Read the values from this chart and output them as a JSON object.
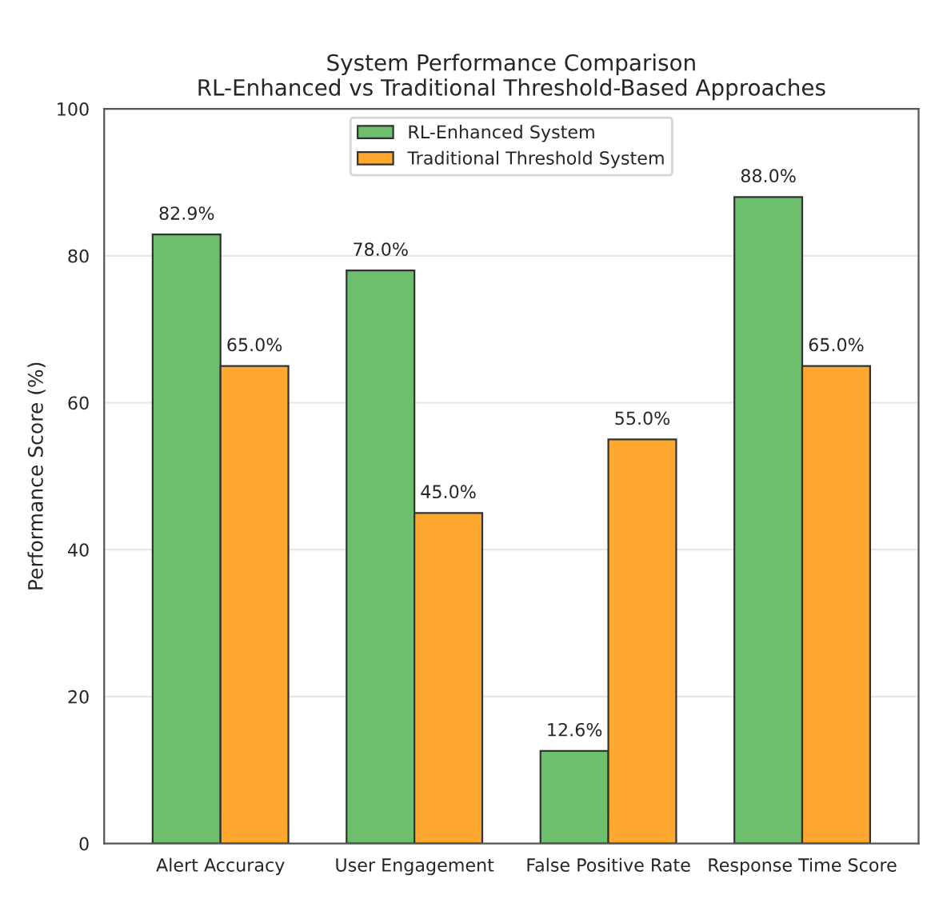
{
  "chart_data": {
    "type": "bar",
    "title": "System Performance Comparison\nRL-Enhanced vs Traditional Threshold-Based Approaches",
    "ylabel": "Performance Score (%)",
    "categories": [
      "Alert Accuracy",
      "User Engagement",
      "False Positive Rate",
      "Response Time Score"
    ],
    "series": [
      {
        "name": "RL-Enhanced System",
        "color": "#6dbe6d",
        "values": [
          82.9,
          78.0,
          12.6,
          88.0
        ],
        "value_labels": [
          "82.9%",
          "78.0%",
          "12.6%",
          "88.0%"
        ]
      },
      {
        "name": "Traditional Threshold System",
        "color": "#fea82f",
        "values": [
          65.0,
          45.0,
          55.0,
          65.0
        ],
        "value_labels": [
          "65.0%",
          "45.0%",
          "55.0%",
          "65.0%"
        ]
      }
    ],
    "ylim": [
      0,
      100
    ],
    "yticks": [
      0,
      20,
      40,
      60,
      80,
      100
    ],
    "grid": "y",
    "legend": "top"
  }
}
